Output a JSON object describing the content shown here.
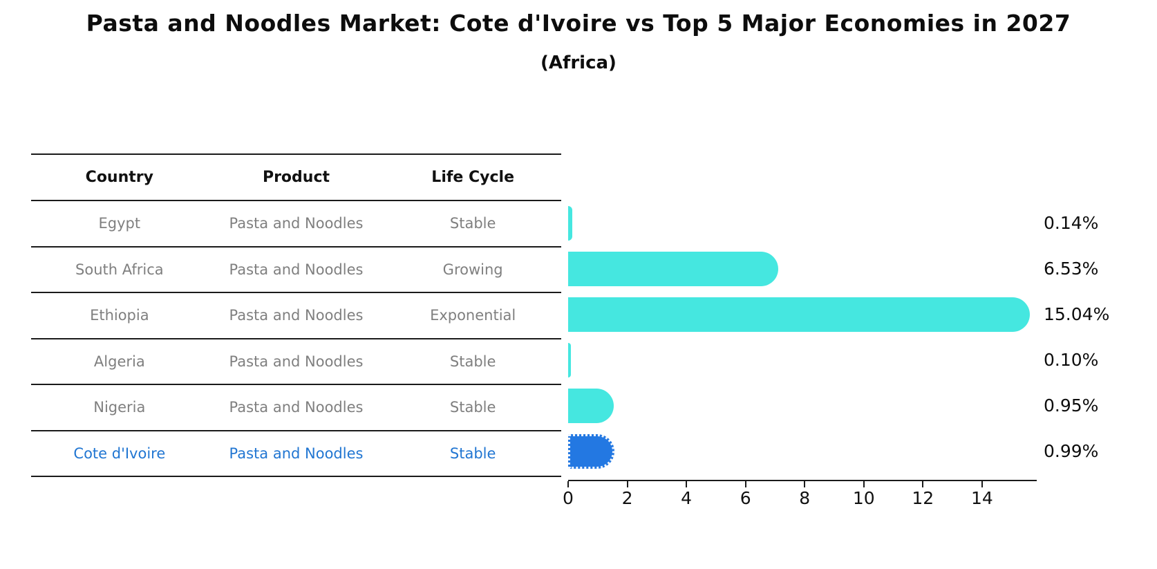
{
  "title": "Pasta and Noodles Market: Cote d'Ivoire vs Top 5 Major Economies in 2027",
  "subtitle": "(Africa)",
  "table": {
    "headers": [
      "Country",
      "Product",
      "Life Cycle"
    ],
    "rows": [
      {
        "country": "Egypt",
        "product": "Pasta and Noodles",
        "life_cycle": "Stable",
        "highlight": false
      },
      {
        "country": "South Africa",
        "product": "Pasta and Noodles",
        "life_cycle": "Growing",
        "highlight": false
      },
      {
        "country": "Ethiopia",
        "product": "Pasta and Noodles",
        "life_cycle": "Exponential",
        "highlight": false
      },
      {
        "country": "Algeria",
        "product": "Pasta and Noodles",
        "life_cycle": "Stable",
        "highlight": false
      },
      {
        "country": "Nigeria",
        "product": "Pasta and Noodles",
        "life_cycle": "Stable",
        "highlight": false
      },
      {
        "country": "Cote d'Ivoire",
        "product": "Pasta and Noodles",
        "life_cycle": "Stable",
        "highlight": true
      }
    ]
  },
  "chart_data": {
    "type": "bar",
    "orientation": "horizontal",
    "categories": [
      "Egypt",
      "South Africa",
      "Ethiopia",
      "Algeria",
      "Nigeria",
      "Cote d'Ivoire"
    ],
    "values": [
      0.14,
      6.53,
      15.04,
      0.1,
      0.95,
      0.99
    ],
    "value_labels": [
      "0.14%",
      "6.53%",
      "15.04%",
      "0.10%",
      "0.95%",
      "0.99%"
    ],
    "x_ticks": [
      0,
      2,
      4,
      6,
      8,
      10,
      12,
      14
    ],
    "xlim": [
      0,
      15.85
    ],
    "grid": false,
    "legend": null,
    "title": "Pasta and Noodles Market: Cote d'Ivoire vs Top 5 Major Economies in 2027 (Africa)",
    "xlabel": "",
    "ylabel": "",
    "highlight_index": 5,
    "colors": {
      "bar": "#45e7e0",
      "highlight_bar": "#2378e2",
      "highlight_text": "#2176d2",
      "table_text": "#7f7f7f",
      "axis": "#1a1a1a",
      "label_text": "#0d0d0d"
    }
  }
}
